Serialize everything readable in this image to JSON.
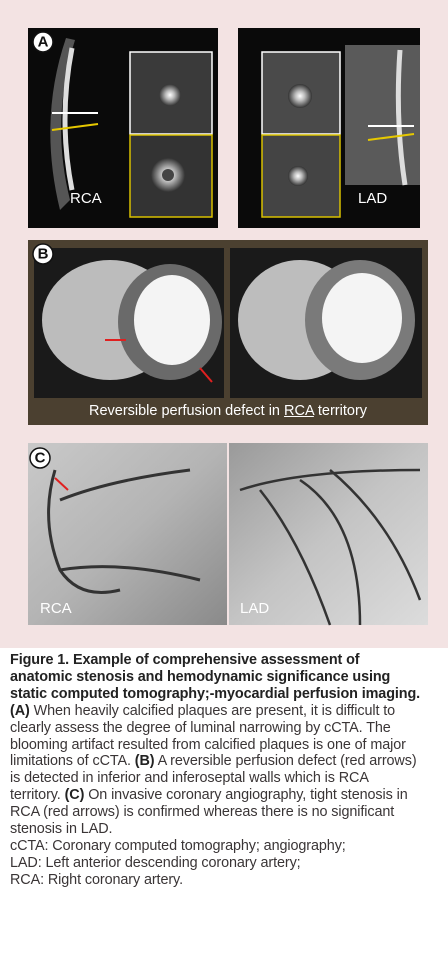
{
  "figure": {
    "panels": [
      {
        "letter": "A",
        "labels": [
          "RCA",
          "LAD"
        ]
      },
      {
        "letter": "B",
        "caption": [
          "Reversible perfusion defect in ",
          "RCA",
          " territory"
        ]
      },
      {
        "letter": "C",
        "labels": [
          "RCA",
          "LAD"
        ]
      }
    ],
    "caption": {
      "title": "Figure 1. Example of comprehensive assessment of anatomic stenosis and hemodynamic significance using static computed tomography;-myocardial perfusion imaging.",
      "parts": [
        {
          "label": "(A)",
          "text": " When heavily calcified plaques are present, it is difficult to clearly assess the degree of luminal narrowing by cCTA. The blooming artifact resulted from calcified plaques is one of major limitations of cCTA. "
        },
        {
          "label": "(B)",
          "text": " A reversible perfusion defect (red arrows) is detected in inferior and inferoseptal walls which is RCA territory. "
        },
        {
          "label": "(C)",
          "text": " On invasive coronary angiography, tight stenosis in RCA (red arrows) is confirmed whereas there is no significant stenosis in LAD."
        }
      ],
      "abbreviations": [
        "cCTA: Coronary computed tomography; angiography;",
        "LAD: Left anterior descending coronary artery;",
        "RCA: Right coronary artery."
      ]
    }
  }
}
